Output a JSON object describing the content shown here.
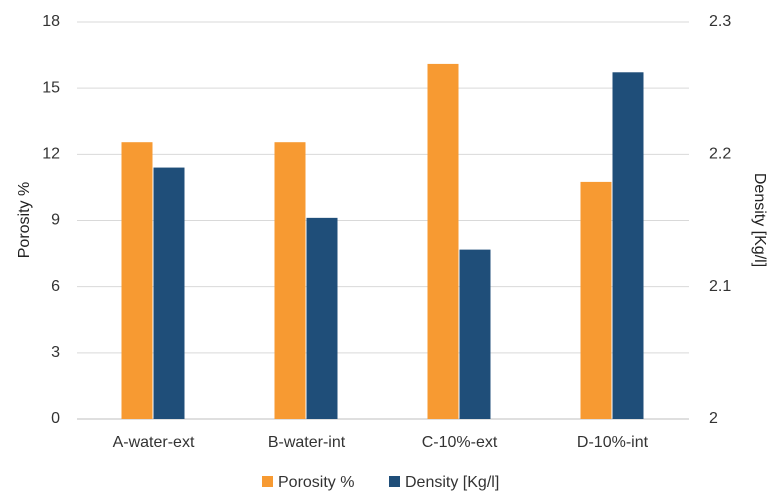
{
  "chart_data": {
    "type": "bar",
    "categories": [
      "A-water-ext",
      "B-water-int",
      "C-10%-ext",
      "D-10%-int"
    ],
    "series": [
      {
        "name": "Porosity  %",
        "axis": "left",
        "color": "#F79A32",
        "values": [
          12.55,
          12.55,
          16.1,
          10.75
        ]
      },
      {
        "name": "Density [Kg/l]",
        "axis": "right",
        "color": "#1F4E79",
        "values": [
          2.19,
          2.152,
          2.128,
          2.262
        ]
      }
    ],
    "y_left": {
      "label": "Porosity %",
      "range": [
        0,
        18
      ],
      "ticks": [
        "0",
        "3",
        "6",
        "9",
        "12",
        "15",
        "18"
      ],
      "tick_values": [
        0,
        3,
        6,
        9,
        12,
        15,
        18
      ]
    },
    "y_right": {
      "label": "Density [Kg/l]",
      "range": [
        2.0,
        2.3
      ],
      "ticks": [
        "2",
        "2.1",
        "2.2",
        "2.3"
      ],
      "tick_values": [
        2.0,
        2.1,
        2.2,
        2.3
      ]
    },
    "grid": true,
    "legend": "bottom"
  }
}
